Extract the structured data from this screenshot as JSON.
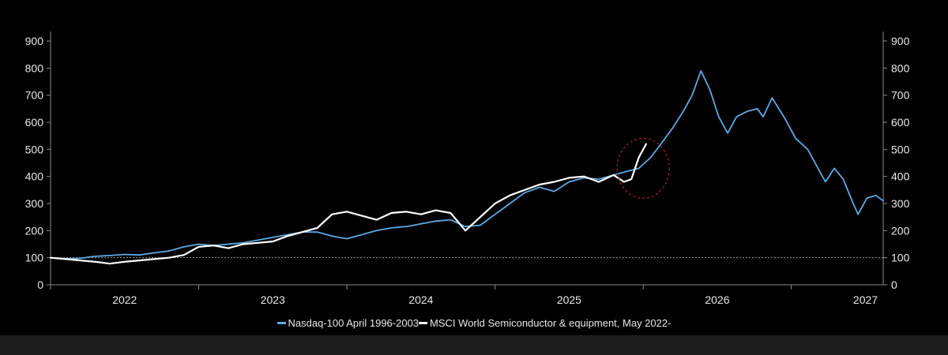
{
  "chart_data": {
    "type": "line",
    "title": "",
    "xlabel": "",
    "ylabel": "",
    "x_ticks": [
      "2022",
      "2023",
      "2024",
      "2025",
      "2026",
      "2027"
    ],
    "xlim": [
      2021.85,
      2027.47
    ],
    "ylim": [
      0,
      900
    ],
    "y_ticks": [
      0,
      100,
      200,
      300,
      400,
      500,
      600,
      700,
      800,
      900
    ],
    "y_ticks_right": [
      0,
      100,
      200,
      300,
      400,
      500,
      600,
      700,
      800,
      900
    ],
    "reference_line": {
      "y": 100,
      "style": "dotted"
    },
    "grid": false,
    "legend_position": "bottom-center",
    "annotation": {
      "shape": "dashed-ellipse",
      "center": [
        2025.85,
        430
      ],
      "color": "#b22222"
    },
    "series": [
      {
        "name": "Nasdaq-100 April 1996-2003",
        "color": "#5aa9e6",
        "x": [
          2021.85,
          2021.95,
          2022.05,
          2022.15,
          2022.25,
          2022.35,
          2022.45,
          2022.55,
          2022.65,
          2022.75,
          2022.85,
          2022.95,
          2023.05,
          2023.15,
          2023.25,
          2023.35,
          2023.45,
          2023.55,
          2023.65,
          2023.75,
          2023.85,
          2023.95,
          2024.05,
          2024.15,
          2024.25,
          2024.35,
          2024.45,
          2024.55,
          2024.65,
          2024.75,
          2024.85,
          2024.95,
          2025.05,
          2025.15,
          2025.25,
          2025.35,
          2025.45,
          2025.55,
          2025.65,
          2025.75,
          2025.82,
          2025.9,
          2025.97,
          2026.05,
          2026.12,
          2026.18,
          2026.24,
          2026.3,
          2026.36,
          2026.42,
          2026.48,
          2026.55,
          2026.62,
          2026.66,
          2026.72,
          2026.8,
          2026.88,
          2026.96,
          2027.02,
          2027.08,
          2027.14,
          2027.2,
          2027.26,
          2027.3,
          2027.36,
          2027.42,
          2027.47
        ],
        "values": [
          100,
          96,
          98,
          105,
          108,
          112,
          110,
          118,
          125,
          140,
          150,
          145,
          150,
          155,
          165,
          175,
          185,
          195,
          195,
          180,
          170,
          185,
          200,
          210,
          215,
          225,
          235,
          240,
          215,
          220,
          260,
          300,
          340,
          360,
          345,
          380,
          395,
          390,
          405,
          420,
          430,
          470,
          520,
          580,
          640,
          700,
          790,
          720,
          620,
          560,
          620,
          640,
          650,
          620,
          690,
          620,
          540,
          500,
          440,
          380,
          430,
          390,
          310,
          260,
          320,
          330,
          310
        ]
      },
      {
        "name": "MSCI World Semiconductor & equipment, May 2022-",
        "color": "#ffffff",
        "x": [
          2021.85,
          2021.95,
          2022.05,
          2022.15,
          2022.25,
          2022.35,
          2022.45,
          2022.55,
          2022.65,
          2022.75,
          2022.85,
          2022.95,
          2023.05,
          2023.15,
          2023.25,
          2023.35,
          2023.45,
          2023.55,
          2023.65,
          2023.75,
          2023.85,
          2023.95,
          2024.05,
          2024.15,
          2024.25,
          2024.35,
          2024.45,
          2024.55,
          2024.65,
          2024.75,
          2024.85,
          2024.95,
          2025.05,
          2025.15,
          2025.25,
          2025.35,
          2025.45,
          2025.55,
          2025.65,
          2025.72,
          2025.77,
          2025.82,
          2025.87
        ],
        "values": [
          100,
          95,
          90,
          85,
          78,
          85,
          90,
          95,
          100,
          110,
          140,
          145,
          135,
          150,
          155,
          160,
          180,
          195,
          210,
          260,
          270,
          255,
          240,
          265,
          270,
          260,
          275,
          265,
          200,
          250,
          300,
          330,
          350,
          370,
          380,
          395,
          400,
          380,
          405,
          380,
          390,
          470,
          520
        ]
      }
    ]
  }
}
